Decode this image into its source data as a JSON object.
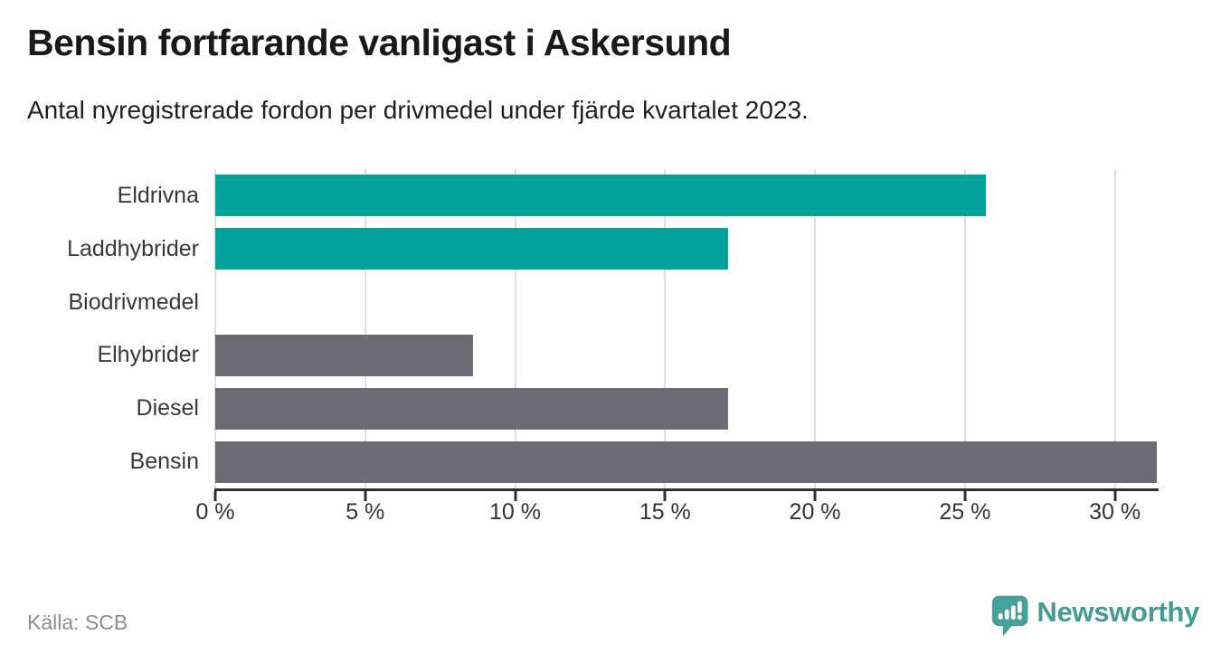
{
  "title": "Bensin fortfarande vanligast i Askersund",
  "subtitle": "Antal nyregistrerade fordon per drivmedel under fjärde kvartalet 2023.",
  "source": "Källa: SCB",
  "brand": {
    "name": "Newsworthy",
    "color": "#429b95",
    "icon": "bar-chart-speech-bubble-icon"
  },
  "colors": {
    "highlight_bar": "#00a29a",
    "default_bar": "#6d6a74",
    "gridline": "#dedede",
    "axis": "#2f2f2f",
    "label_text": "#383838",
    "source_text": "#8c8c8c"
  },
  "chart_data": {
    "type": "bar",
    "orientation": "horizontal",
    "title": "Bensin fortfarande vanligast i Askersund",
    "subtitle": "Antal nyregistrerade fordon per drivmedel under fjärde kvartalet 2023.",
    "categories": [
      "Eldrivna",
      "Laddhybrider",
      "Biodrivmedel",
      "Elhybrider",
      "Diesel",
      "Bensin"
    ],
    "values": [
      25.7,
      17.1,
      0,
      8.6,
      17.1,
      31.4
    ],
    "unit": "%",
    "bar_colors": [
      "#00a29a",
      "#00a29a",
      "#6d6a74",
      "#6d6a74",
      "#6d6a74",
      "#6d6a74"
    ],
    "x_ticks": [
      0,
      5,
      10,
      15,
      20,
      25,
      30
    ],
    "x_tick_labels": [
      "0 %",
      "5 %",
      "10 %",
      "15 %",
      "20 %",
      "25 %",
      "30 %"
    ],
    "xlim": [
      0,
      31.43
    ],
    "grid": "vertical",
    "legend": "none",
    "source": "Källa: SCB"
  }
}
